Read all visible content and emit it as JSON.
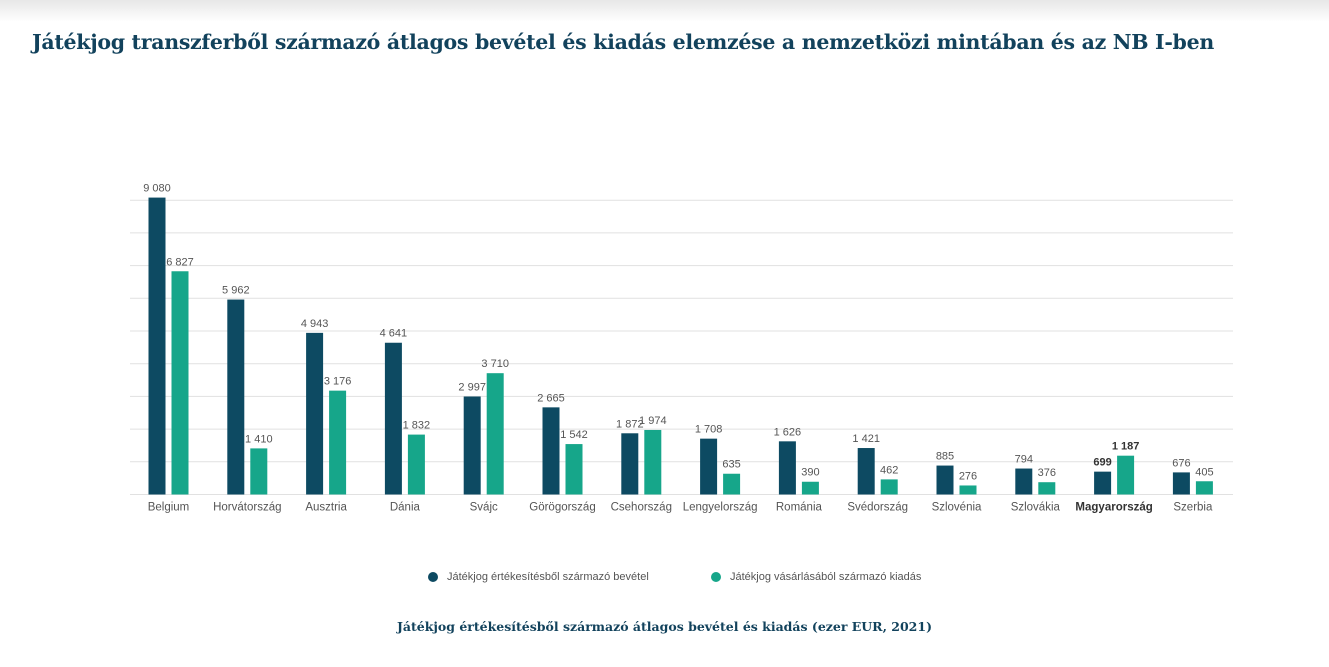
{
  "colors": {
    "revenue": "#0d4a62",
    "expense": "#16a68a",
    "grid": "#e1e1e1",
    "label": "#555555",
    "title": "#12425c"
  },
  "page": {
    "title": "Játékjog transzferből származó átlagos bevétel és kiadás elemzése a nemzetközi mintában és az NB I-ben",
    "caption": "Játékjog értékesítésből származó átlagos bevétel és kiadás (ezer EUR, 2021)"
  },
  "chart_data": {
    "type": "bar",
    "title": "Játékjog transzferből származó átlagos bevétel és kiadás elemzése a nemzetközi mintában és az NB I-ben",
    "xlabel": "",
    "ylabel": "",
    "ylim": [
      0,
      9000
    ],
    "grid": true,
    "legend_position": "bottom",
    "highlight": "Magyarország",
    "categories": [
      "Belgium",
      "Horvátország",
      "Ausztria",
      "Dánia",
      "Svájc",
      "Görögország",
      "Csehország",
      "Lengyelország",
      "Románia",
      "Svédország",
      "Szlovénia",
      "Szlovákia",
      "Magyarország",
      "Szerbia"
    ],
    "series": [
      {
        "name": "Játékjog értékesítésből származó bevétel",
        "values": [
          9080,
          5962,
          4943,
          4641,
          2997,
          2665,
          1872,
          1708,
          1626,
          1421,
          885,
          794,
          699,
          676
        ],
        "labels": [
          "9 080",
          "5 962",
          "4 943",
          "4 641",
          "2 997",
          "2 665",
          "1 872",
          "1 708",
          "1 626",
          "1 421",
          "885",
          "794",
          "699",
          "676"
        ]
      },
      {
        "name": "Játékjog vásárlásából származó kiadás",
        "values": [
          6827,
          1410,
          3176,
          1832,
          3710,
          1542,
          1974,
          635,
          390,
          462,
          276,
          376,
          1187,
          405
        ],
        "labels": [
          "6 827",
          "1 410",
          "3 176",
          "1 832",
          "3 710",
          "1 542",
          "1 974",
          "635",
          "390",
          "462",
          "276",
          "376",
          "1 187",
          "405"
        ]
      }
    ]
  }
}
